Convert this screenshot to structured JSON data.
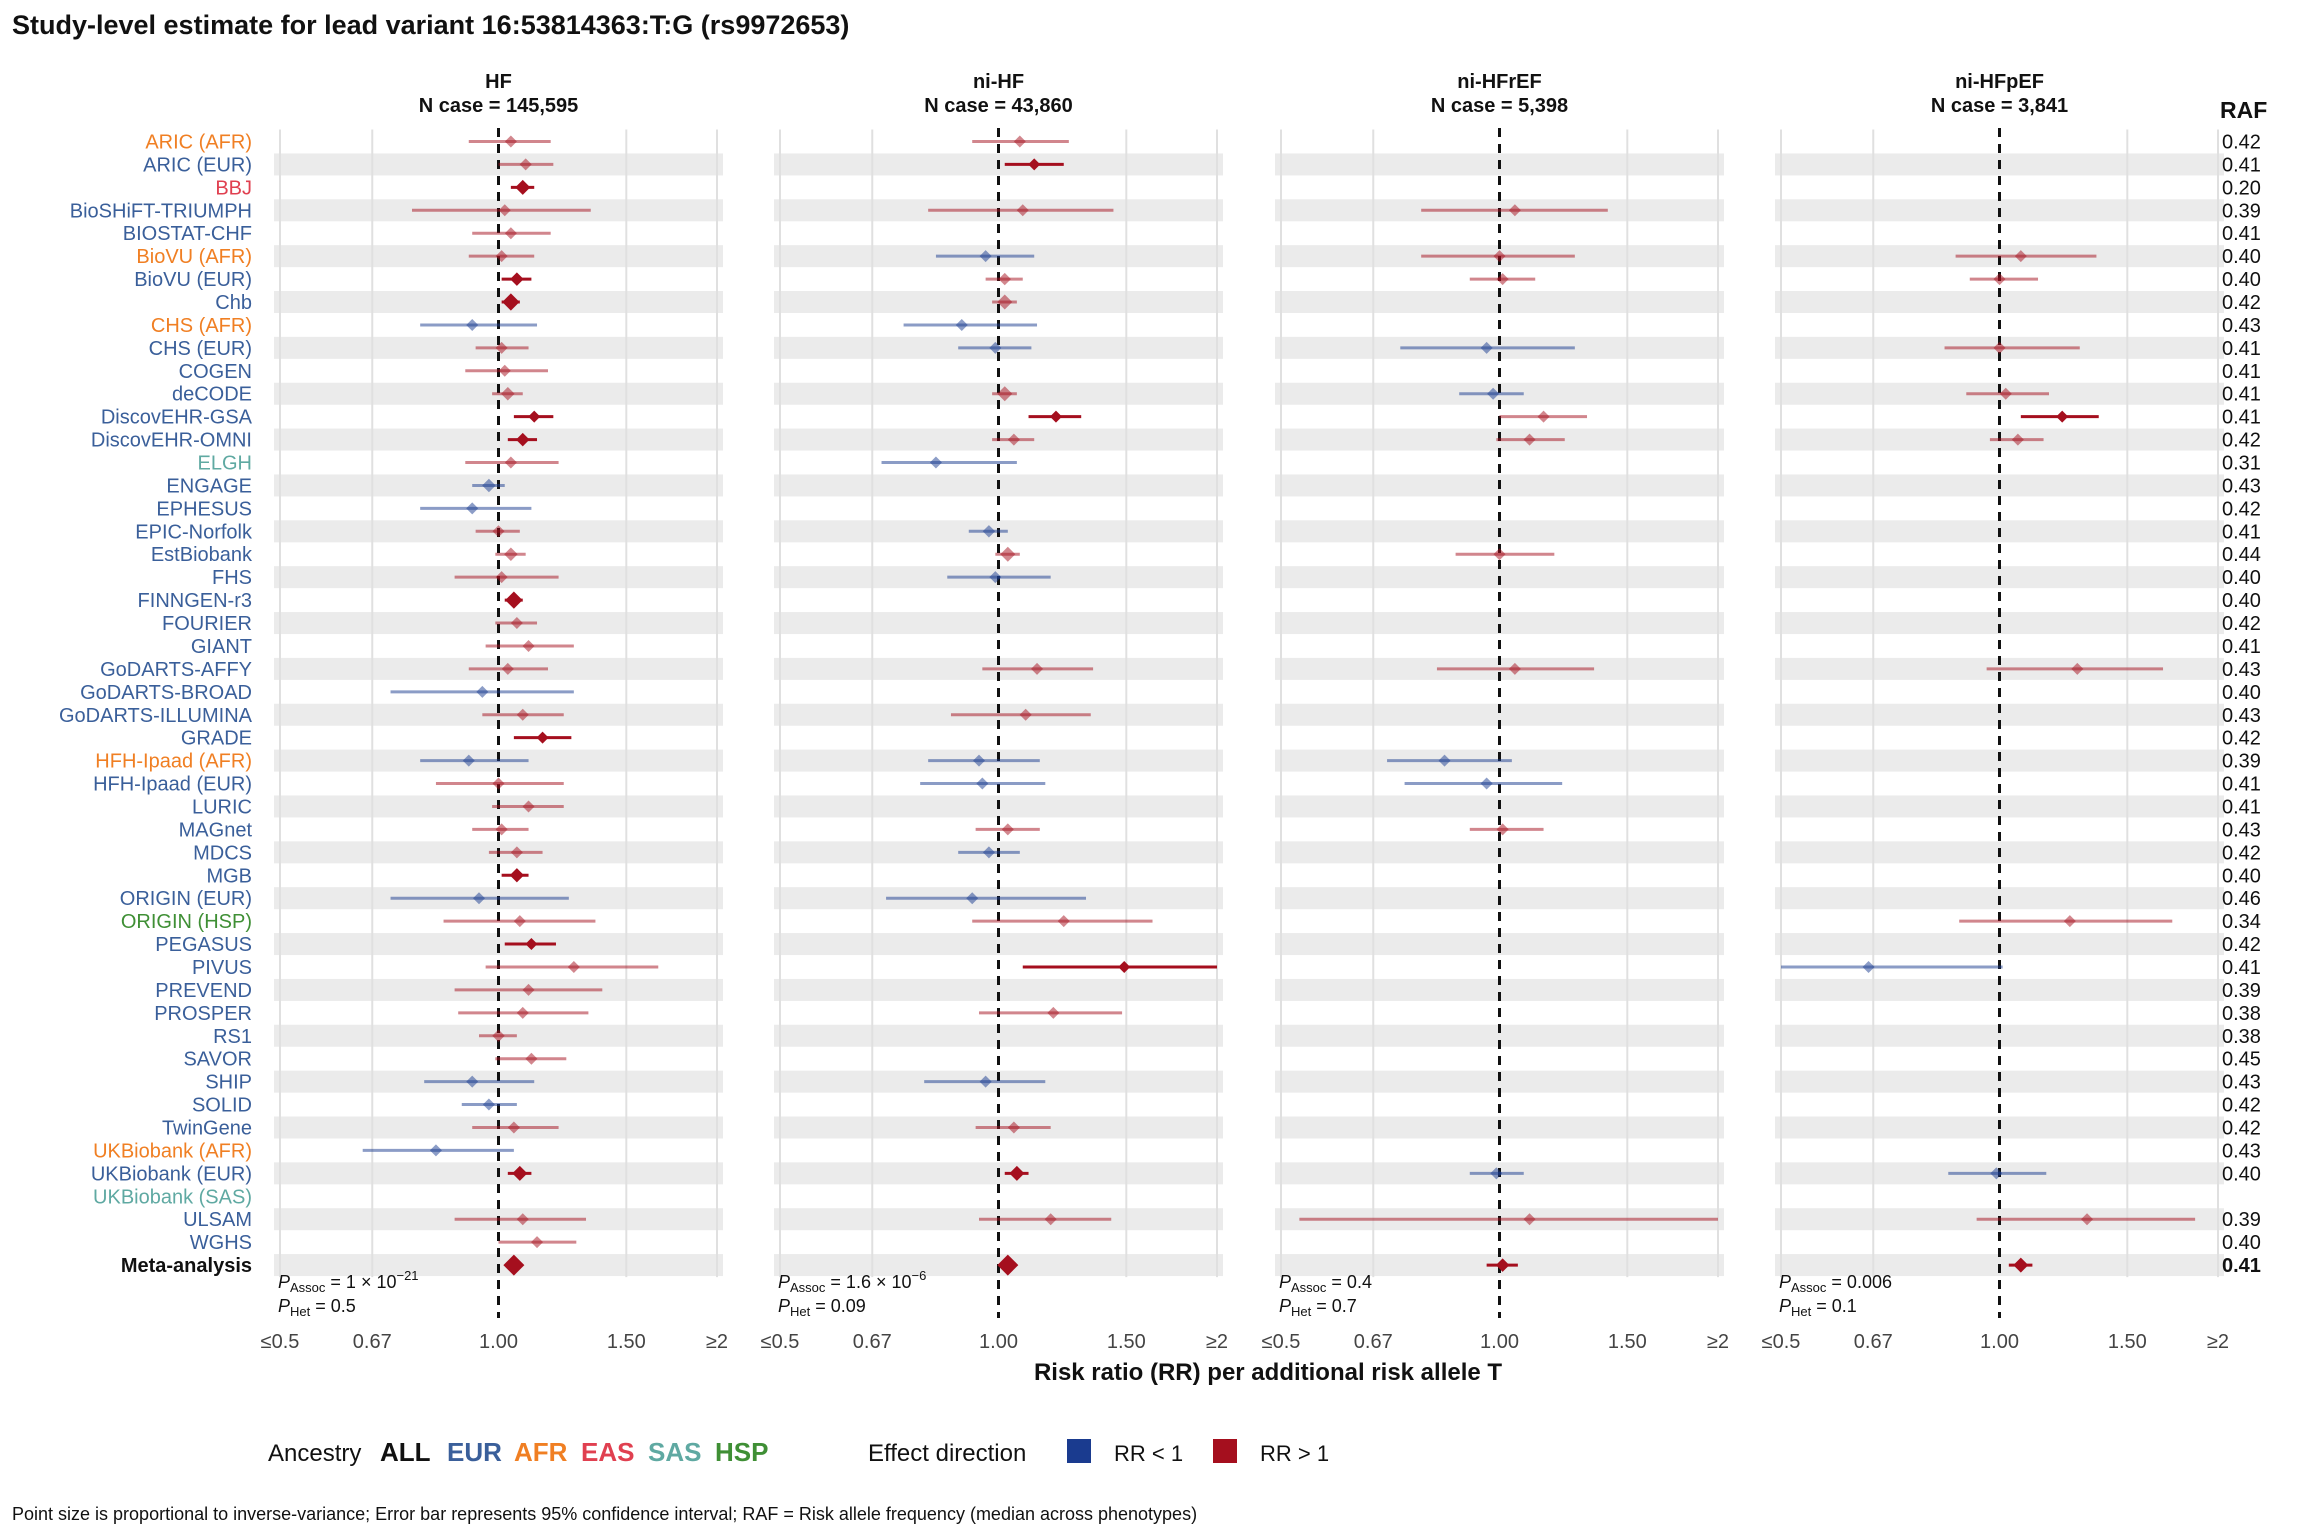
{
  "title": "Study-level estimate for lead variant 16:53814363:T:G (rs9972653)",
  "raf_header": "RAF",
  "x_axis_label": "Risk ratio (RR) per additional risk allele T",
  "x_ticks": [
    "≤0.5",
    "0.67",
    "1.00",
    "1.50",
    "≥2"
  ],
  "legend": {
    "ancestry_label": "Ancestry",
    "ancestries": [
      {
        "name": "ALL",
        "color": "#111111"
      },
      {
        "name": "EUR",
        "color": "#3a5f9a"
      },
      {
        "name": "AFR",
        "color": "#f07f23"
      },
      {
        "name": "EAS",
        "color": "#e04050"
      },
      {
        "name": "SAS",
        "color": "#5fa9a2"
      },
      {
        "name": "HSP",
        "color": "#3f8f35"
      }
    ],
    "effect_label": "Effect direction",
    "effects": [
      {
        "label": "RR < 1",
        "color": "#1a3b8f"
      },
      {
        "label": "RR > 1",
        "color": "#a50f1e"
      }
    ]
  },
  "footnote": "Point size is proportional to inverse-variance; Error bar represents 95% confidence interval; RAF = Risk allele frequency (median across phenotypes)",
  "chart_data": {
    "type": "forest",
    "x_scale": "log",
    "xlim": [
      0.5,
      2
    ],
    "studies": [
      {
        "name": "ARIC (AFR)",
        "ancestry": "AFR",
        "raf": "0.42"
      },
      {
        "name": "ARIC (EUR)",
        "ancestry": "EUR",
        "raf": "0.41"
      },
      {
        "name": "BBJ",
        "ancestry": "EAS",
        "raf": "0.20"
      },
      {
        "name": "BioSHiFT-TRIUMPH",
        "ancestry": "EUR",
        "raf": "0.39"
      },
      {
        "name": "BIOSTAT-CHF",
        "ancestry": "EUR",
        "raf": "0.41"
      },
      {
        "name": "BioVU (AFR)",
        "ancestry": "AFR",
        "raf": "0.40"
      },
      {
        "name": "BioVU (EUR)",
        "ancestry": "EUR",
        "raf": "0.40"
      },
      {
        "name": "Chb",
        "ancestry": "EUR",
        "raf": "0.42"
      },
      {
        "name": "CHS (AFR)",
        "ancestry": "AFR",
        "raf": "0.43"
      },
      {
        "name": "CHS (EUR)",
        "ancestry": "EUR",
        "raf": "0.41"
      },
      {
        "name": "COGEN",
        "ancestry": "EUR",
        "raf": "0.41"
      },
      {
        "name": "deCODE",
        "ancestry": "EUR",
        "raf": "0.41"
      },
      {
        "name": "DiscovEHR-GSA",
        "ancestry": "EUR",
        "raf": "0.41"
      },
      {
        "name": "DiscovEHR-OMNI",
        "ancestry": "EUR",
        "raf": "0.42"
      },
      {
        "name": "ELGH",
        "ancestry": "SAS",
        "raf": "0.31"
      },
      {
        "name": "ENGAGE",
        "ancestry": "EUR",
        "raf": "0.43"
      },
      {
        "name": "EPHESUS",
        "ancestry": "EUR",
        "raf": "0.42"
      },
      {
        "name": "EPIC-Norfolk",
        "ancestry": "EUR",
        "raf": "0.41"
      },
      {
        "name": "EstBiobank",
        "ancestry": "EUR",
        "raf": "0.44"
      },
      {
        "name": "FHS",
        "ancestry": "EUR",
        "raf": "0.40"
      },
      {
        "name": "FINNGEN-r3",
        "ancestry": "EUR",
        "raf": "0.40"
      },
      {
        "name": "FOURIER",
        "ancestry": "EUR",
        "raf": "0.42"
      },
      {
        "name": "GIANT",
        "ancestry": "EUR",
        "raf": "0.41"
      },
      {
        "name": "GoDARTS-AFFY",
        "ancestry": "EUR",
        "raf": "0.43"
      },
      {
        "name": "GoDARTS-BROAD",
        "ancestry": "EUR",
        "raf": "0.40"
      },
      {
        "name": "GoDARTS-ILLUMINA",
        "ancestry": "EUR",
        "raf": "0.43"
      },
      {
        "name": "GRADE",
        "ancestry": "EUR",
        "raf": "0.42"
      },
      {
        "name": "HFH-Ipaad (AFR)",
        "ancestry": "AFR",
        "raf": "0.39"
      },
      {
        "name": "HFH-Ipaad (EUR)",
        "ancestry": "EUR",
        "raf": "0.41"
      },
      {
        "name": "LURIC",
        "ancestry": "EUR",
        "raf": "0.41"
      },
      {
        "name": "MAGnet",
        "ancestry": "EUR",
        "raf": "0.43"
      },
      {
        "name": "MDCS",
        "ancestry": "EUR",
        "raf": "0.42"
      },
      {
        "name": "MGB",
        "ancestry": "EUR",
        "raf": "0.40"
      },
      {
        "name": "ORIGIN (EUR)",
        "ancestry": "EUR",
        "raf": "0.46"
      },
      {
        "name": "ORIGIN (HSP)",
        "ancestry": "HSP",
        "raf": "0.34"
      },
      {
        "name": "PEGASUS",
        "ancestry": "EUR",
        "raf": "0.42"
      },
      {
        "name": "PIVUS",
        "ancestry": "EUR",
        "raf": "0.41"
      },
      {
        "name": "PREVEND",
        "ancestry": "EUR",
        "raf": "0.39"
      },
      {
        "name": "PROSPER",
        "ancestry": "EUR",
        "raf": "0.38"
      },
      {
        "name": "RS1",
        "ancestry": "EUR",
        "raf": "0.38"
      },
      {
        "name": "SAVOR",
        "ancestry": "EUR",
        "raf": "0.45"
      },
      {
        "name": "SHIP",
        "ancestry": "EUR",
        "raf": "0.43"
      },
      {
        "name": "SOLID",
        "ancestry": "EUR",
        "raf": "0.42"
      },
      {
        "name": "TwinGene",
        "ancestry": "EUR",
        "raf": "0.42"
      },
      {
        "name": "UKBiobank (AFR)",
        "ancestry": "AFR",
        "raf": "0.43"
      },
      {
        "name": "UKBiobank (EUR)",
        "ancestry": "EUR",
        "raf": "0.40"
      },
      {
        "name": "UKBiobank (SAS)",
        "ancestry": "SAS",
        "raf": ""
      },
      {
        "name": "ULSAM",
        "ancestry": "EUR",
        "raf": "0.39"
      },
      {
        "name": "WGHS",
        "ancestry": "EUR",
        "raf": "0.40"
      },
      {
        "name": "Meta-analysis",
        "ancestry": "ALL",
        "raf": "0.41"
      }
    ],
    "panels": [
      {
        "title": "HF",
        "n_case": "N case = 145,595",
        "p_assoc": "1 × 10",
        "p_assoc_exp": "−21",
        "p_het": "0.5",
        "estimates": [
          [
            1.04,
            0.91,
            1.18
          ],
          [
            1.09,
            1.0,
            1.19
          ],
          [
            1.08,
            1.04,
            1.12
          ],
          [
            1.02,
            0.76,
            1.34
          ],
          [
            1.04,
            0.92,
            1.18
          ],
          [
            1.01,
            0.91,
            1.12
          ],
          [
            1.06,
            1.01,
            1.11
          ],
          [
            1.04,
            1.01,
            1.07
          ],
          [
            0.92,
            0.78,
            1.13
          ],
          [
            1.01,
            0.93,
            1.1
          ],
          [
            1.02,
            0.9,
            1.17
          ],
          [
            1.03,
            0.98,
            1.08
          ],
          [
            1.12,
            1.05,
            1.19
          ],
          [
            1.08,
            1.03,
            1.13
          ],
          [
            1.04,
            0.9,
            1.21
          ],
          [
            0.97,
            0.92,
            1.02
          ],
          [
            0.92,
            0.78,
            1.11
          ],
          [
            1.0,
            0.93,
            1.07
          ],
          [
            1.04,
            0.99,
            1.09
          ],
          [
            1.01,
            0.87,
            1.21
          ],
          [
            1.05,
            1.02,
            1.08
          ],
          [
            1.06,
            0.99,
            1.13
          ],
          [
            1.1,
            0.96,
            1.27
          ],
          [
            1.03,
            0.91,
            1.17
          ],
          [
            0.95,
            0.71,
            1.27
          ],
          [
            1.08,
            0.95,
            1.23
          ],
          [
            1.15,
            1.05,
            1.26
          ],
          [
            0.91,
            0.78,
            1.1
          ],
          [
            1.0,
            0.82,
            1.23
          ],
          [
            1.1,
            0.98,
            1.23
          ],
          [
            1.01,
            0.92,
            1.1
          ],
          [
            1.06,
            0.97,
            1.15
          ],
          [
            1.06,
            1.01,
            1.1
          ],
          [
            0.94,
            0.71,
            1.25
          ],
          [
            1.07,
            0.84,
            1.36
          ],
          [
            1.11,
            1.02,
            1.2
          ],
          [
            1.27,
            0.96,
            1.66
          ],
          [
            1.1,
            0.87,
            1.39
          ],
          [
            1.08,
            0.88,
            1.33
          ],
          [
            1.0,
            0.94,
            1.06
          ],
          [
            1.11,
            0.99,
            1.24
          ],
          [
            0.92,
            0.79,
            1.12
          ],
          [
            0.97,
            0.89,
            1.06
          ],
          [
            1.05,
            0.92,
            1.21
          ],
          [
            0.82,
            0.65,
            1.05
          ],
          [
            1.07,
            1.03,
            1.11
          ],
          null,
          [
            1.08,
            0.87,
            1.32
          ],
          [
            1.13,
            1.0,
            1.28
          ],
          [
            1.05,
            1.03,
            1.07
          ]
        ]
      },
      {
        "title": "ni-HF",
        "n_case": "N case = 43,860",
        "p_assoc": "1.6 × 10",
        "p_assoc_exp": "−6",
        "p_het": "0.09",
        "estimates": [
          [
            1.07,
            0.92,
            1.25
          ],
          [
            1.12,
            1.02,
            1.23
          ],
          null,
          [
            1.08,
            0.8,
            1.44
          ],
          null,
          [
            0.96,
            0.82,
            1.12
          ],
          [
            1.02,
            0.96,
            1.08
          ],
          [
            1.02,
            0.98,
            1.06
          ],
          [
            0.89,
            0.74,
            1.13
          ],
          [
            0.99,
            0.88,
            1.11
          ],
          null,
          [
            1.02,
            0.98,
            1.06
          ],
          [
            1.2,
            1.1,
            1.3
          ],
          [
            1.05,
            0.98,
            1.12
          ],
          [
            0.82,
            0.69,
            1.06
          ],
          null,
          null,
          [
            0.97,
            0.91,
            1.03
          ],
          [
            1.03,
            0.99,
            1.07
          ],
          [
            0.99,
            0.85,
            1.18
          ],
          null,
          null,
          null,
          [
            1.13,
            0.95,
            1.35
          ],
          null,
          [
            1.09,
            0.86,
            1.34
          ],
          null,
          [
            0.94,
            0.8,
            1.14
          ],
          [
            0.95,
            0.78,
            1.16
          ],
          null,
          [
            1.03,
            0.93,
            1.14
          ],
          [
            0.97,
            0.88,
            1.07
          ],
          null,
          [
            0.92,
            0.7,
            1.32
          ],
          [
            1.23,
            0.92,
            1.63
          ],
          null,
          [
            1.49,
            1.08,
            2.0
          ],
          null,
          [
            1.19,
            0.94,
            1.48
          ],
          null,
          null,
          [
            0.96,
            0.79,
            1.16
          ],
          null,
          [
            1.05,
            0.93,
            1.18
          ],
          null,
          [
            1.06,
            1.02,
            1.1
          ],
          null,
          [
            1.18,
            0.94,
            1.43
          ],
          null,
          [
            1.03,
            1.01,
            1.05
          ]
        ]
      },
      {
        "title": "ni-HFrEF",
        "n_case": "N case = 5,398",
        "p_assoc": "0.4",
        "p_assoc_exp": "",
        "p_het": "0.7",
        "estimates": [
          null,
          null,
          null,
          [
            1.05,
            0.78,
            1.41
          ],
          null,
          [
            1.0,
            0.78,
            1.27
          ],
          [
            1.01,
            0.91,
            1.12
          ],
          null,
          null,
          [
            0.96,
            0.73,
            1.27
          ],
          null,
          [
            0.98,
            0.88,
            1.08
          ],
          [
            1.15,
            1.0,
            1.32
          ],
          [
            1.1,
            0.99,
            1.23
          ],
          null,
          null,
          null,
          null,
          [
            1.0,
            0.87,
            1.19
          ],
          null,
          null,
          null,
          null,
          [
            1.05,
            0.82,
            1.35
          ],
          null,
          null,
          null,
          [
            0.84,
            0.7,
            1.04
          ],
          [
            0.96,
            0.74,
            1.22
          ],
          null,
          [
            1.01,
            0.91,
            1.15
          ],
          null,
          null,
          null,
          null,
          null,
          null,
          null,
          null,
          null,
          null,
          null,
          null,
          null,
          null,
          [
            0.99,
            0.91,
            1.08
          ],
          null,
          [
            1.1,
            0.53,
            2.0
          ],
          null,
          [
            1.01,
            0.96,
            1.06
          ]
        ]
      },
      {
        "title": "ni-HFpEF",
        "n_case": "N case = 3,841",
        "p_assoc": "0.006",
        "p_assoc_exp": "",
        "p_het": "0.1",
        "estimates": [
          null,
          null,
          null,
          null,
          null,
          [
            1.07,
            0.87,
            1.36
          ],
          [
            1.0,
            0.91,
            1.13
          ],
          null,
          null,
          [
            1.0,
            0.84,
            1.29
          ],
          null,
          [
            1.02,
            0.9,
            1.17
          ],
          [
            1.22,
            1.07,
            1.37
          ],
          [
            1.06,
            0.97,
            1.15
          ],
          null,
          null,
          null,
          null,
          null,
          null,
          null,
          null,
          null,
          [
            1.28,
            0.96,
            1.68
          ],
          null,
          null,
          null,
          null,
          null,
          null,
          null,
          null,
          null,
          null,
          [
            1.25,
            0.88,
            1.73
          ],
          null,
          [
            0.66,
            0.5,
            1.01
          ],
          null,
          null,
          null,
          null,
          null,
          null,
          null,
          null,
          [
            0.99,
            0.85,
            1.16
          ],
          null,
          [
            1.32,
            0.93,
            1.86
          ],
          null,
          [
            1.07,
            1.03,
            1.11
          ]
        ]
      }
    ]
  }
}
